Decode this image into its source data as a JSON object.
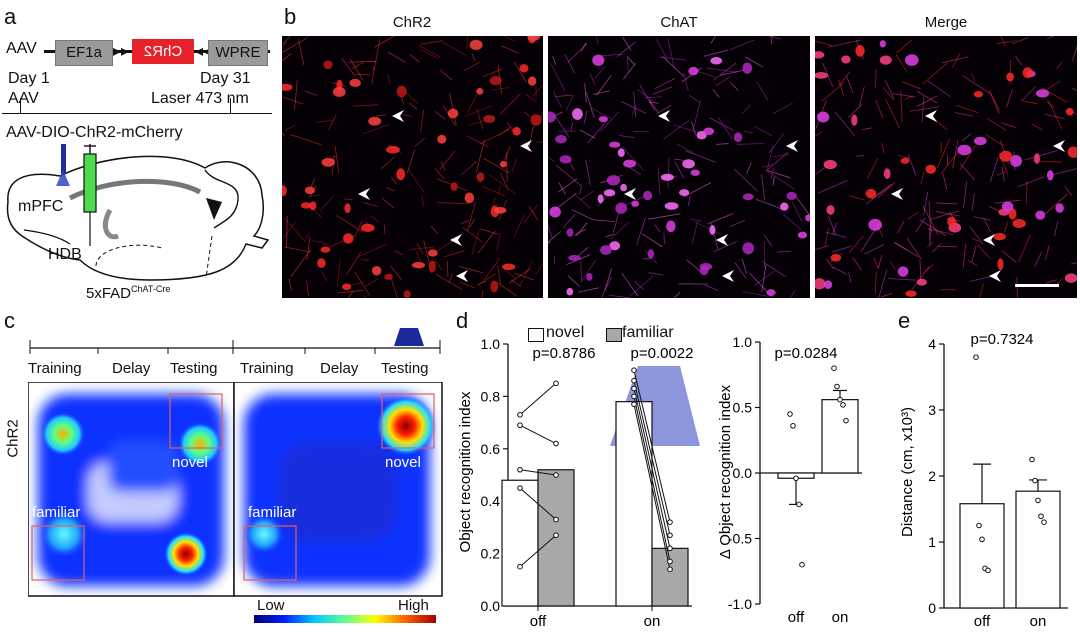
{
  "panel_a": {
    "label": "a",
    "construct": {
      "prefix": "AAV",
      "promoter": "EF1a",
      "gene": "ChR2",
      "wpre": "WPRE"
    },
    "timeline": {
      "day1": "Day 1",
      "day1_sub": "AAV",
      "day31": "Day 31",
      "day31_sub": "Laser 473 nm"
    },
    "virus": "AAV-DIO-ChR2-mCherry",
    "region_mpfc": "mPFC",
    "region_hdb": "HDB",
    "mouse_line": "5xFAD",
    "mouse_line_sup": "ChAT-Cre"
  },
  "panel_b": {
    "label": "b",
    "titles": [
      "ChR2",
      "ChAT",
      "Merge"
    ],
    "colors": {
      "chr2": "#ff2a2a",
      "chat": "#e040e8",
      "merge_bg": "#12000c"
    }
  },
  "panel_c": {
    "label": "c",
    "phases_left": [
      "Training",
      "Delay",
      "Testing"
    ],
    "phases_right": [
      "Training",
      "Delay",
      "Testing"
    ],
    "row_label": "ChR2",
    "novel": "novel",
    "familiar": "familiar",
    "colorbar_low": "Low",
    "colorbar_high": "High"
  },
  "panel_d": {
    "label": "d",
    "legend": [
      "novel",
      "familiar"
    ],
    "left_chart": {
      "ylabel": "Object recognition index",
      "ylim": [
        0.0,
        1.0
      ],
      "yticks": [
        "0.0",
        "0.2",
        "0.4",
        "0.6",
        "0.8",
        "1.0"
      ],
      "groups": [
        "off",
        "on"
      ],
      "p_values": [
        "p=0.8786",
        "p=0.0022"
      ]
    },
    "right_chart": {
      "ylabel": "Δ Object recognition index",
      "ylim": [
        -1.0,
        1.0
      ],
      "yticks": [
        "1.0",
        "0.5",
        "0.0",
        "-0.5",
        "-1.0"
      ],
      "groups": [
        "off",
        "on"
      ],
      "p_value": "p=0.0284"
    }
  },
  "panel_e": {
    "label": "e",
    "ylabel": "Distance (cm, x10³)",
    "ylim": [
      0,
      4
    ],
    "yticks": [
      "4",
      "3",
      "2",
      "1",
      "0"
    ],
    "groups": [
      "off",
      "on"
    ],
    "p_value": "p=0.7324"
  },
  "chart_data": [
    {
      "type": "bar",
      "categories": [
        "off",
        "on"
      ],
      "series": [
        {
          "name": "novel",
          "values": [
            0.48,
            0.78
          ]
        },
        {
          "name": "familiar",
          "values": [
            0.52,
            0.22
          ]
        }
      ],
      "points": {
        "off_novel": [
          0.73,
          0.69,
          0.52,
          0.45,
          0.15
        ],
        "off_familiar": [
          0.85,
          0.62,
          0.5,
          0.33,
          0.27
        ],
        "on_novel": [
          0.9,
          0.86,
          0.83,
          0.8,
          0.77
        ],
        "on_familiar": [
          0.32,
          0.27,
          0.22,
          0.17,
          0.14
        ]
      },
      "ylabel": "Object recognition index",
      "ylim": [
        0,
        1
      ]
    },
    {
      "type": "bar",
      "categories": [
        "off",
        "on"
      ],
      "values": [
        -0.04,
        0.56
      ],
      "errors": [
        0.2,
        0.07
      ],
      "points": {
        "off": [
          0.45,
          0.36,
          -0.04,
          -0.24,
          -0.7
        ],
        "on": [
          0.8,
          0.66,
          0.56,
          0.52,
          0.4
        ]
      },
      "ylabel": "Δ Object recognition index",
      "ylim": [
        -1,
        1
      ]
    },
    {
      "type": "bar",
      "categories": [
        "off",
        "on"
      ],
      "values": [
        1.58,
        1.77
      ],
      "errors": [
        0.6,
        0.17
      ],
      "points": {
        "off": [
          3.8,
          1.25,
          1.04,
          0.6,
          0.57
        ],
        "on": [
          2.25,
          1.93,
          1.63,
          1.39,
          1.3
        ]
      },
      "ylabel": "Distance (cm, x10³)",
      "ylim": [
        0,
        4
      ]
    }
  ]
}
